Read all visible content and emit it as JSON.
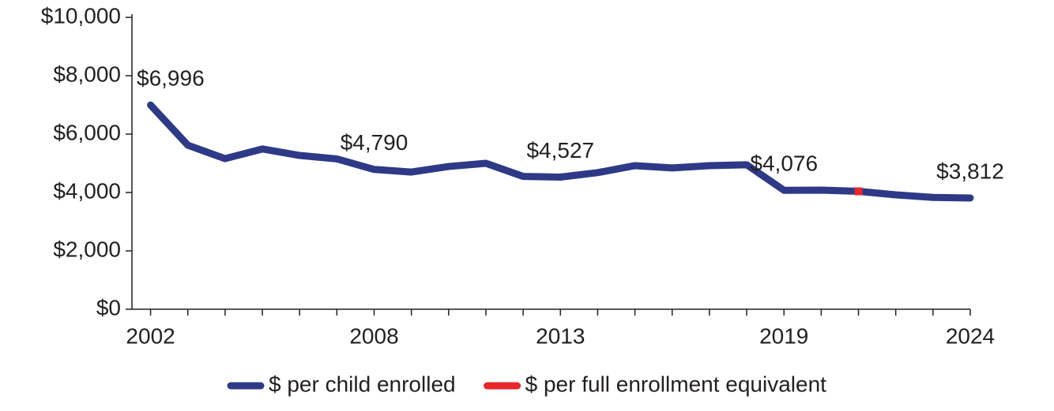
{
  "chart_data": {
    "type": "line",
    "x": [
      2002,
      2003,
      2004,
      2005,
      2006,
      2007,
      2008,
      2009,
      2010,
      2011,
      2012,
      2013,
      2014,
      2015,
      2016,
      2017,
      2018,
      2019,
      2020,
      2021,
      2022,
      2023,
      2024
    ],
    "series": [
      {
        "name": "$ per child enrolled",
        "color": "#2e3a87",
        "values": [
          6996,
          5620,
          5160,
          5490,
          5270,
          5150,
          4790,
          4700,
          4890,
          5000,
          4550,
          4527,
          4680,
          4920,
          4840,
          4920,
          4950,
          4076,
          4080,
          4040,
          3920,
          3830,
          3812
        ],
        "value_labels": [
          "$6,996",
          null,
          null,
          null,
          null,
          null,
          "$4,790",
          null,
          null,
          null,
          null,
          "$4,527",
          null,
          null,
          null,
          null,
          null,
          "$4,076",
          null,
          null,
          null,
          null,
          "$3,812"
        ]
      },
      {
        "name": "$ per full enrollment equivalent",
        "color": "#e8262b",
        "values": [
          null,
          null,
          null,
          null,
          null,
          null,
          null,
          null,
          null,
          null,
          null,
          null,
          null,
          null,
          null,
          null,
          null,
          null,
          null,
          4040,
          null,
          null,
          null
        ]
      }
    ],
    "xlim": [
      2001.5,
      2024
    ],
    "xticks": [
      2002,
      2008,
      2013,
      2019,
      2024
    ],
    "ylim": [
      0,
      10000
    ],
    "yticks": [
      {
        "value": 0,
        "label": "$0"
      },
      {
        "value": 2000,
        "label": "$2,000"
      },
      {
        "value": 4000,
        "label": "$4,000"
      },
      {
        "value": 6000,
        "label": "$6,000"
      },
      {
        "value": 8000,
        "label": "$8,000"
      },
      {
        "value": 10000,
        "label": "$10,000"
      }
    ],
    "legend": "bottom"
  }
}
